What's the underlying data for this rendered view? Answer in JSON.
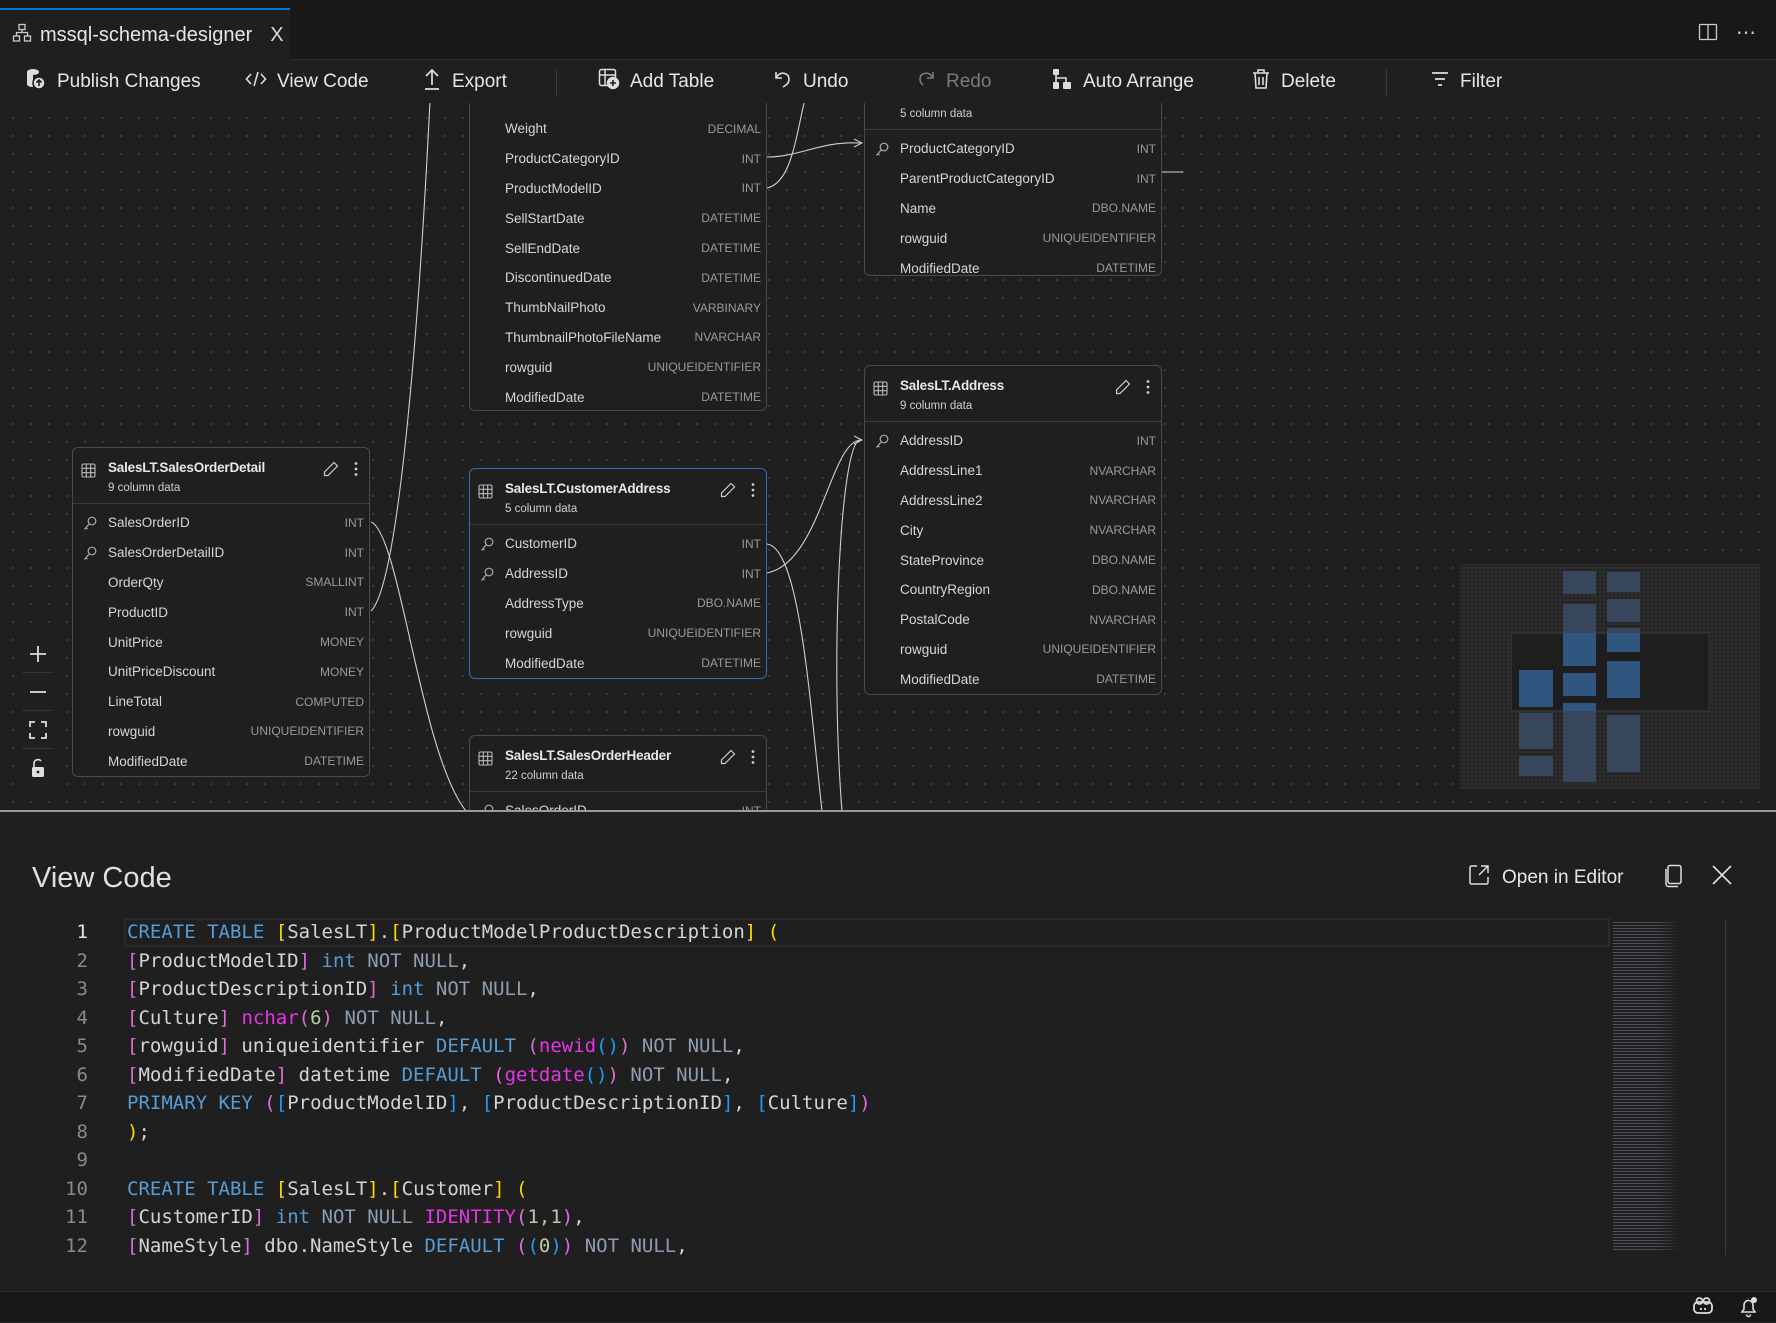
{
  "tab": {
    "title": "mssql-schema-designer",
    "icon": "schema-icon",
    "close": "X"
  },
  "toolbar": {
    "publish": "Publish Changes",
    "view_code": "View Code",
    "export": "Export",
    "add_table": "Add Table",
    "undo": "Undo",
    "redo": "Redo",
    "auto_arrange": "Auto Arrange",
    "delete": "Delete",
    "filter": "Filter"
  },
  "tables": [
    {
      "name": "",
      "subtitle": "",
      "columns": [
        {
          "name": "Weight",
          "type": "DECIMAL"
        },
        {
          "name": "ProductCategoryID",
          "type": "INT"
        },
        {
          "name": "ProductModelID",
          "type": "INT"
        },
        {
          "name": "SellStartDate",
          "type": "DATETIME"
        },
        {
          "name": "SellEndDate",
          "type": "DATETIME"
        },
        {
          "name": "DiscontinuedDate",
          "type": "DATETIME"
        },
        {
          "name": "ThumbNailPhoto",
          "type": "VARBINARY"
        },
        {
          "name": "ThumbnailPhotoFileName",
          "type": "NVARCHAR"
        },
        {
          "name": "rowguid",
          "type": "UNIQUEIDENTIFIER"
        },
        {
          "name": "ModifiedDate",
          "type": "DATETIME"
        }
      ]
    },
    {
      "name": "",
      "subtitle": "5 column data",
      "columns": [
        {
          "name": "ProductCategoryID",
          "type": "INT",
          "key": true
        },
        {
          "name": "ParentProductCategoryID",
          "type": "INT"
        },
        {
          "name": "Name",
          "type": "DBO.NAME"
        },
        {
          "name": "rowguid",
          "type": "UNIQUEIDENTIFIER"
        },
        {
          "name": "ModifiedDate",
          "type": "DATETIME"
        }
      ]
    },
    {
      "name": "SalesLT.Address",
      "subtitle": "9 column data",
      "columns": [
        {
          "name": "AddressID",
          "type": "INT",
          "key": true
        },
        {
          "name": "AddressLine1",
          "type": "NVARCHAR"
        },
        {
          "name": "AddressLine2",
          "type": "NVARCHAR"
        },
        {
          "name": "City",
          "type": "NVARCHAR"
        },
        {
          "name": "StateProvince",
          "type": "DBO.NAME"
        },
        {
          "name": "CountryRegion",
          "type": "DBO.NAME"
        },
        {
          "name": "PostalCode",
          "type": "NVARCHAR"
        },
        {
          "name": "rowguid",
          "type": "UNIQUEIDENTIFIER"
        },
        {
          "name": "ModifiedDate",
          "type": "DATETIME"
        }
      ]
    },
    {
      "name": "SalesLT.SalesOrderDetail",
      "subtitle": "9 column data",
      "columns": [
        {
          "name": "SalesOrderID",
          "type": "INT",
          "key": true
        },
        {
          "name": "SalesOrderDetailID",
          "type": "INT",
          "key": true
        },
        {
          "name": "OrderQty",
          "type": "SMALLINT"
        },
        {
          "name": "ProductID",
          "type": "INT"
        },
        {
          "name": "UnitPrice",
          "type": "MONEY"
        },
        {
          "name": "UnitPriceDiscount",
          "type": "MONEY"
        },
        {
          "name": "LineTotal",
          "type": "COMPUTED"
        },
        {
          "name": "rowguid",
          "type": "UNIQUEIDENTIFIER"
        },
        {
          "name": "ModifiedDate",
          "type": "DATETIME"
        }
      ]
    },
    {
      "name": "SalesLT.CustomerAddress",
      "subtitle": "5 column data",
      "selected": true,
      "columns": [
        {
          "name": "CustomerID",
          "type": "INT",
          "key": true
        },
        {
          "name": "AddressID",
          "type": "INT",
          "key": true
        },
        {
          "name": "AddressType",
          "type": "DBO.NAME"
        },
        {
          "name": "rowguid",
          "type": "UNIQUEIDENTIFIER"
        },
        {
          "name": "ModifiedDate",
          "type": "DATETIME"
        }
      ]
    },
    {
      "name": "SalesLT.SalesOrderHeader",
      "subtitle": "22 column data",
      "columns": [
        {
          "name": "SalesOrderID",
          "type": "INT",
          "key": true
        }
      ]
    }
  ],
  "panel": {
    "title": "View Code",
    "open_in_editor": "Open in Editor",
    "code_lines": [
      [
        [
          "CREATE TABLE",
          "kw"
        ],
        [
          " ",
          "id"
        ],
        [
          "[",
          "b1"
        ],
        [
          "SalesLT",
          "id"
        ],
        [
          "]",
          "b1"
        ],
        [
          ".",
          "id"
        ],
        [
          "[",
          "b1"
        ],
        [
          "ProductModelProductDescription",
          "id"
        ],
        [
          "]",
          "b1"
        ],
        [
          " ",
          "id"
        ],
        [
          "(",
          "b1"
        ]
      ],
      [
        [
          "[",
          "b2"
        ],
        [
          "ProductModelID",
          "id"
        ],
        [
          "]",
          "b2"
        ],
        [
          " ",
          "id"
        ],
        [
          "int",
          "kw"
        ],
        [
          " NOT NULL",
          "nn"
        ],
        [
          ",",
          "id"
        ]
      ],
      [
        [
          "[",
          "b2"
        ],
        [
          "ProductDescriptionID",
          "id"
        ],
        [
          "]",
          "b2"
        ],
        [
          " ",
          "id"
        ],
        [
          "int",
          "kw"
        ],
        [
          " NOT NULL",
          "nn"
        ],
        [
          ",",
          "id"
        ]
      ],
      [
        [
          "[",
          "b2"
        ],
        [
          "Culture",
          "id"
        ],
        [
          "]",
          "b2"
        ],
        [
          " ",
          "id"
        ],
        [
          "nchar",
          "fn"
        ],
        [
          "(",
          "b2"
        ],
        [
          "6",
          "num"
        ],
        [
          ")",
          "b2"
        ],
        [
          " NOT NULL",
          "nn"
        ],
        [
          ",",
          "id"
        ]
      ],
      [
        [
          "[",
          "b2"
        ],
        [
          "rowguid",
          "id"
        ],
        [
          "]",
          "b2"
        ],
        [
          " uniqueidentifier ",
          "id"
        ],
        [
          "DEFAULT",
          "kw"
        ],
        [
          " ",
          "id"
        ],
        [
          "(",
          "b2"
        ],
        [
          "newid",
          "fn"
        ],
        [
          "()",
          "b3"
        ],
        [
          ")",
          "b2"
        ],
        [
          " NOT NULL",
          "nn"
        ],
        [
          ",",
          "id"
        ]
      ],
      [
        [
          "[",
          "b2"
        ],
        [
          "ModifiedDate",
          "id"
        ],
        [
          "]",
          "b2"
        ],
        [
          " datetime ",
          "id"
        ],
        [
          "DEFAULT",
          "kw"
        ],
        [
          " ",
          "id"
        ],
        [
          "(",
          "b2"
        ],
        [
          "getdate",
          "fn"
        ],
        [
          "()",
          "b3"
        ],
        [
          ")",
          "b2"
        ],
        [
          " NOT NULL",
          "nn"
        ],
        [
          ",",
          "id"
        ]
      ],
      [
        [
          "PRIMARY KEY",
          "kw"
        ],
        [
          " ",
          "id"
        ],
        [
          "(",
          "b2"
        ],
        [
          "[",
          "b3"
        ],
        [
          "ProductModelID",
          "id"
        ],
        [
          "]",
          "b3"
        ],
        [
          ", ",
          "id"
        ],
        [
          "[",
          "b3"
        ],
        [
          "ProductDescriptionID",
          "id"
        ],
        [
          "]",
          "b3"
        ],
        [
          ", ",
          "id"
        ],
        [
          "[",
          "b3"
        ],
        [
          "Culture",
          "id"
        ],
        [
          "]",
          "b3"
        ],
        [
          ")",
          "b2"
        ]
      ],
      [
        [
          ")",
          "b1"
        ],
        [
          ";",
          "id"
        ]
      ],
      [],
      [
        [
          "CREATE TABLE",
          "kw"
        ],
        [
          " ",
          "id"
        ],
        [
          "[",
          "b1"
        ],
        [
          "SalesLT",
          "id"
        ],
        [
          "]",
          "b1"
        ],
        [
          ".",
          "id"
        ],
        [
          "[",
          "b1"
        ],
        [
          "Customer",
          "id"
        ],
        [
          "]",
          "b1"
        ],
        [
          " ",
          "id"
        ],
        [
          "(",
          "b1"
        ]
      ],
      [
        [
          "[",
          "b2"
        ],
        [
          "CustomerID",
          "id"
        ],
        [
          "]",
          "b2"
        ],
        [
          " ",
          "id"
        ],
        [
          "int",
          "kw"
        ],
        [
          " NOT NULL ",
          "nn"
        ],
        [
          "IDENTITY",
          "fn"
        ],
        [
          "(",
          "b2"
        ],
        [
          "1,1",
          "num"
        ],
        [
          ")",
          "b2"
        ],
        [
          ",",
          "id"
        ]
      ],
      [
        [
          "[",
          "b2"
        ],
        [
          "NameStyle",
          "id"
        ],
        [
          "]",
          "b2"
        ],
        [
          " dbo.NameStyle ",
          "id"
        ],
        [
          "DEFAULT",
          "kw"
        ],
        [
          " ",
          "id"
        ],
        [
          "(",
          "b2"
        ],
        [
          "(",
          "b3"
        ],
        [
          "0",
          "num"
        ],
        [
          ")",
          "b3"
        ],
        [
          ")",
          "b2"
        ],
        [
          " NOT NULL",
          "nn"
        ],
        [
          ",",
          "id"
        ]
      ]
    ]
  },
  "colors": {
    "accent": "#0078d4",
    "selected_border": "#2f6fb3",
    "keyword": "#569cd6",
    "function": "#e635e6"
  }
}
